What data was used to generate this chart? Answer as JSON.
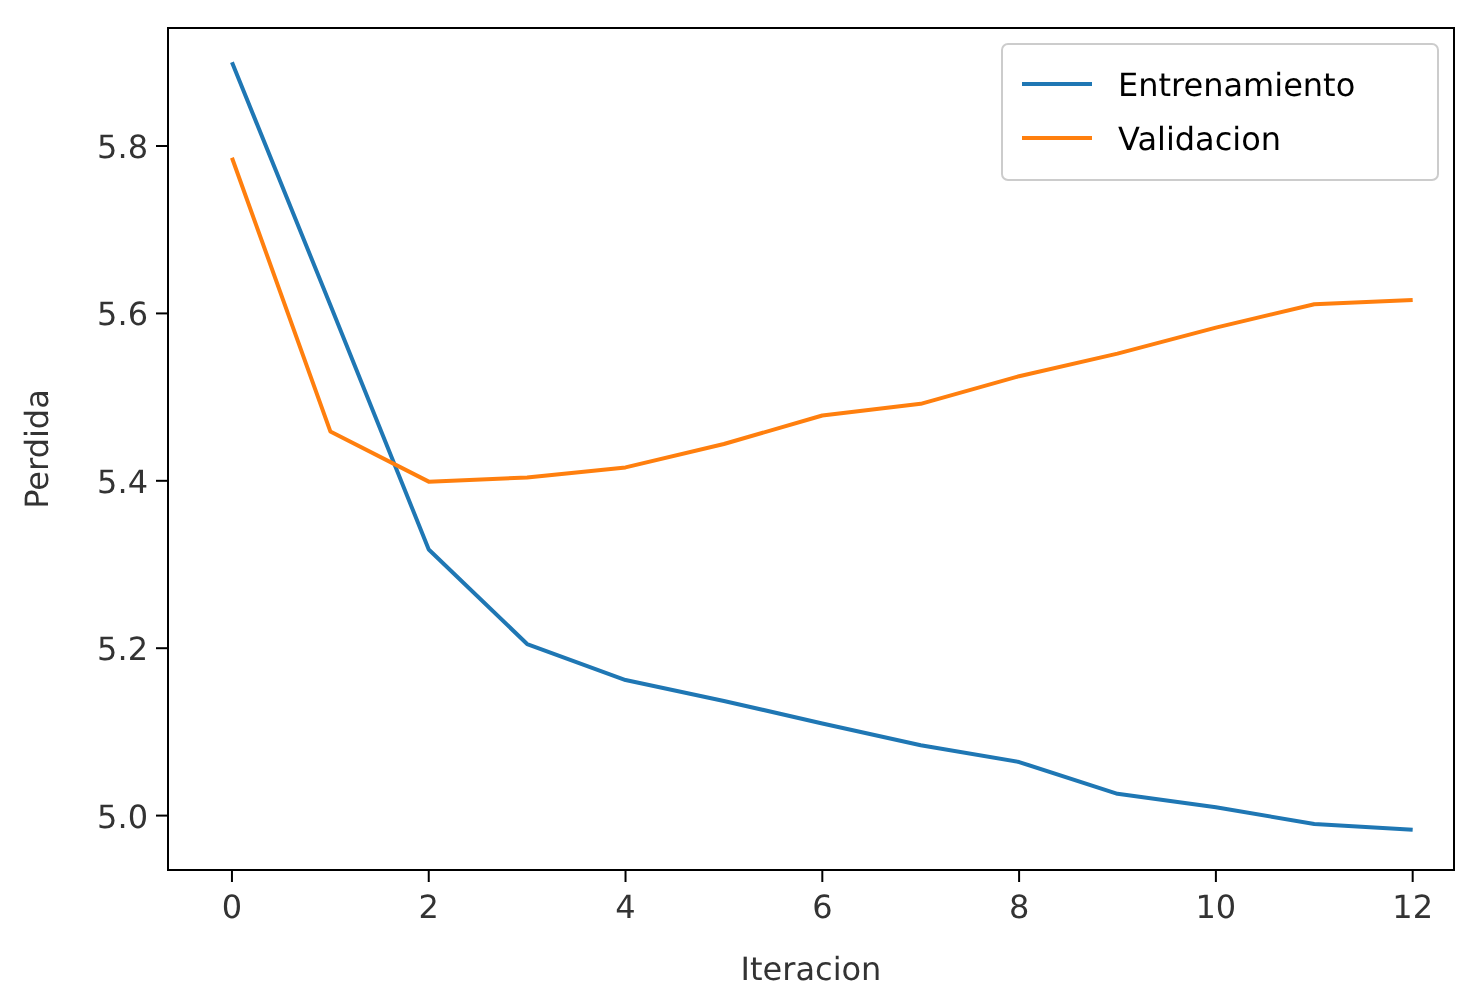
{
  "chart_data": {
    "type": "line",
    "xlabel": "Iteracion",
    "ylabel": "Perdida",
    "x": [
      0,
      1,
      2,
      3,
      4,
      5,
      6,
      7,
      8,
      9,
      10,
      11,
      12
    ],
    "series": [
      {
        "name": "Entrenamiento",
        "color": "#1f77b4",
        "values": [
          5.9,
          5.61,
          5.318,
          5.205,
          5.162,
          5.137,
          5.11,
          5.084,
          5.064,
          5.026,
          5.01,
          4.99,
          4.983
        ]
      },
      {
        "name": "Validacion",
        "color": "#ff7f0e",
        "values": [
          5.786,
          5.459,
          5.399,
          5.404,
          5.416,
          5.444,
          5.478,
          5.492,
          5.525,
          5.552,
          5.583,
          5.611,
          5.616
        ]
      }
    ],
    "xlim": [
      -0.65,
      12.42
    ],
    "xticks": [
      0,
      2,
      4,
      6,
      8,
      10,
      12
    ],
    "ylim": [
      4.935,
      5.941
    ],
    "yticks": [
      {
        "value": 5.0,
        "label": "5.0"
      },
      {
        "value": 5.2,
        "label": "5.2"
      },
      {
        "value": 5.4,
        "label": "5.4"
      },
      {
        "value": 5.6,
        "label": "5.6"
      },
      {
        "value": 5.8,
        "label": "5.8"
      }
    ],
    "legend": "top right",
    "grid": false
  }
}
